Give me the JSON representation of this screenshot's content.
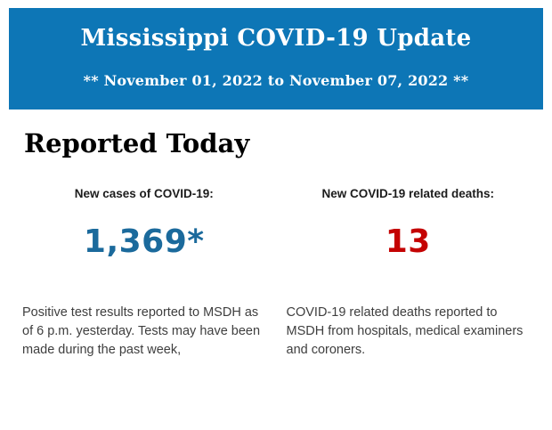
{
  "header": {
    "title": "Mississippi COVID-19 Update",
    "date_range": "** November 01, 2022 to November 07, 2022 **",
    "background_color": "#0d76b6",
    "text_color": "#ffffff"
  },
  "section": {
    "heading": "Reported Today"
  },
  "stats": [
    {
      "label": "New cases of COVID-19:",
      "value": "1,369*",
      "value_color": "#1b6a9c",
      "description": "Positive test results reported to MSDH as of 6 p.m. yesterday. Tests may have been made during the past week,"
    },
    {
      "label": "New COVID-19 related deaths:",
      "value": "13",
      "value_color": "#c40303",
      "description": "COVID-19 related deaths reported to MSDH from hospitals, medical examiners and coroners."
    }
  ]
}
